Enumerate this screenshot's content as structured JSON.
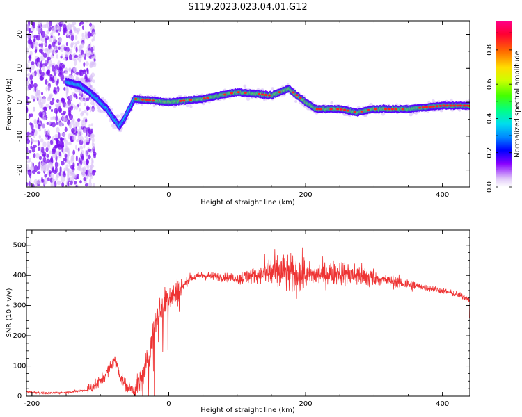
{
  "figure": {
    "title": "S119.2023.023.04.01.G12"
  },
  "colors": {
    "axis": "#000000",
    "snr_line": "#ee2222",
    "colorbar_stops": [
      "#e8d8f8",
      "#8800ff",
      "#0000ff",
      "#00ccff",
      "#00ff88",
      "#66ff00",
      "#ffff00",
      "#ff8800",
      "#ff0044",
      "#ff0088"
    ]
  },
  "chart_data": [
    {
      "type": "heatmap",
      "xlabel": "Height of straight line (km)",
      "ylabel": "Frequency (Hz)",
      "xlim": [
        -208,
        440
      ],
      "ylim": [
        -25,
        24
      ],
      "x_ticks": [
        -200,
        0,
        200,
        400
      ],
      "y_ticks": [
        -20,
        -10,
        0,
        10,
        20
      ],
      "colorbar": {
        "label": "Normalized spectral amplitude",
        "range": [
          0,
          0.97
        ],
        "ticks": [
          0.0,
          0.2,
          0.4,
          0.6,
          0.8
        ]
      },
      "ridge": {
        "height_km": [
          -150,
          -130,
          -110,
          -100,
          -90,
          -80,
          -72,
          -65,
          -58,
          -50,
          0,
          50,
          100,
          150,
          175,
          200,
          215,
          250,
          275,
          300,
          350,
          400,
          440
        ],
        "frequency_hz": [
          6,
          5,
          2,
          0,
          -2,
          -5,
          -7,
          -5,
          -2,
          1,
          0,
          1,
          3,
          2,
          4,
          0,
          -2,
          -2,
          -3,
          -2,
          -2,
          -1,
          -1
        ]
      }
    },
    {
      "type": "line",
      "xlabel": "Height of straight line (km)",
      "ylabel": "SNR (10 * v/v)",
      "xlim": [
        -208,
        440
      ],
      "ylim": [
        0,
        550
      ],
      "x_ticks": [
        -200,
        0,
        200,
        400
      ],
      "y_ticks": [
        0,
        100,
        200,
        300,
        400,
        500
      ],
      "series": [
        {
          "x": [
            -208,
            -180,
            -150,
            -120,
            -100,
            -90,
            -80,
            -75,
            -70,
            -60,
            -50,
            -40,
            -30,
            -20,
            -10,
            0,
            10,
            20,
            30,
            50,
            100,
            150,
            200,
            250,
            300,
            350,
            400,
            430,
            440
          ],
          "y": [
            15,
            10,
            12,
            20,
            50,
            80,
            120,
            100,
            60,
            30,
            20,
            50,
            120,
            250,
            300,
            330,
            340,
            360,
            390,
            400,
            390,
            410,
            400,
            410,
            390,
            370,
            350,
            330,
            320
          ]
        }
      ]
    }
  ]
}
